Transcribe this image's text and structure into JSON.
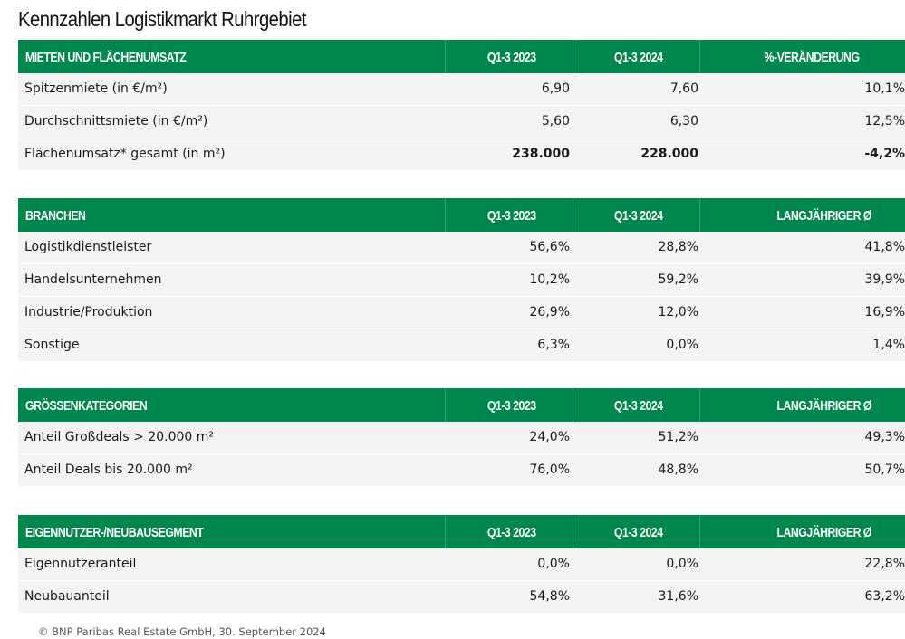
{
  "title": "Kennzahlen Logistikmarkt Ruhrgebiet",
  "tables": [
    {
      "header": [
        "MIETEN UND FLÄCHENUMSATZ",
        "Q1-3 2023",
        "Q1-3 2024",
        "%-VERÄNDERUNG"
      ],
      "rows": [
        [
          "Spitzenmiete (in €/m²)",
          "6,90",
          "7,60",
          "10,1%"
        ],
        [
          "Durchschnittsmiete (in €/m²)",
          "5,60",
          "6,30",
          "12,5%"
        ],
        [
          "Flächenumsatz* gesamt (in m²)",
          "238.000",
          "228.000",
          "-4,2%"
        ]
      ]
    },
    {
      "header": [
        "BRANCHEN",
        "Q1-3 2023",
        "Q1-3 2024",
        "LANGJÄHRIGER Ø"
      ],
      "rows": [
        [
          "Logistikdienstleister",
          "56,6%",
          "28,8%",
          "41,8%"
        ],
        [
          "Handelsunternehmen",
          "10,2%",
          "59,2%",
          "39,9%"
        ],
        [
          "Industrie/Produktion",
          "26,9%",
          "12,0%",
          "16,9%"
        ],
        [
          "Sonstige",
          "6,3%",
          "0,0%",
          "1,4%"
        ]
      ]
    },
    {
      "header": [
        "GRÖSSENKATEGORIEN",
        "Q1-3 2023",
        "Q1-3 2024",
        "LANGJÄHRIGER Ø"
      ],
      "rows": [
        [
          "Anteil Großdeals > 20.000 m²",
          "24,0%",
          "51,2%",
          "49,3%"
        ],
        [
          "Anteil Deals bis 20.000 m²",
          "76,0%",
          "48,8%",
          "50,7%"
        ]
      ]
    },
    {
      "header": [
        "EIGENNUTZER-/NEUBAUSEGMENT",
        "Q1-3 2023",
        "Q1-3 2024",
        "LANGJÄHRIGER Ø"
      ],
      "rows": [
        [
          "Eigennutzeranteil",
          "0,0%",
          "0,0%",
          "22,8%"
        ],
        [
          "Neubauanteil",
          "54,8%",
          "31,6%",
          "63,2%"
        ]
      ]
    }
  ],
  "footer": "© BNP Paribas Real Estate GmbH, 30. September 2024",
  "colors": {
    "header_bg": "#00874e",
    "row_bg": "#f3f3f3"
  }
}
